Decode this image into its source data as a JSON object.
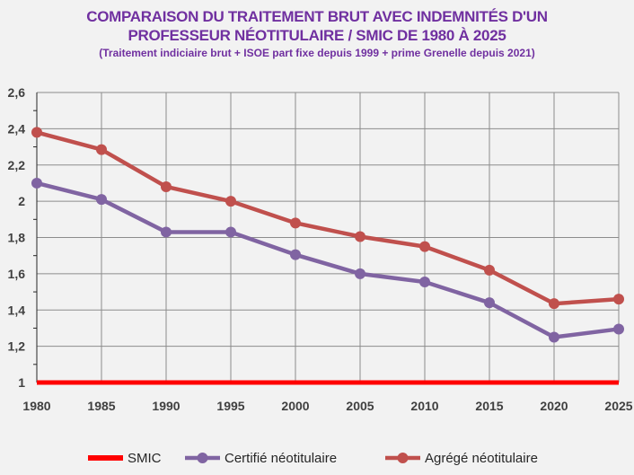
{
  "chart_data": {
    "type": "line",
    "title_line1": "COMPARAISON DU TRAITEMENT BRUT AVEC INDEMNITÉS D'UN",
    "title_line2": "PROFESSEUR NÉOTITULAIRE / SMIC DE 1980 À 2025",
    "subtitle": "(Traitement indiciaire brut + ISOE part fixe depuis 1999 + prime Grenelle depuis 2021)",
    "x": [
      1980,
      1985,
      1990,
      1995,
      2000,
      2005,
      2010,
      2015,
      2020,
      2025
    ],
    "x_tick_labels": [
      "1980",
      "1985",
      "1990",
      "1995",
      "2000",
      "2005",
      "2010",
      "2015",
      "2020",
      "2025"
    ],
    "ylim": [
      1,
      2.6
    ],
    "y_tick_labels": [
      "1",
      "1,2",
      "1,4",
      "1,6",
      "1,8",
      "2",
      "2,2",
      "2,4",
      "2,6"
    ],
    "y_ticks": [
      1,
      1.2,
      1.4,
      1.6,
      1.8,
      2,
      2.2,
      2.4,
      2.6
    ],
    "grid": true,
    "legend_position": "bottom",
    "series": [
      {
        "name": "SMIC",
        "color": "#ff0000",
        "values": [
          1,
          1,
          1,
          1,
          1,
          1,
          1,
          1,
          1,
          1
        ],
        "markers": false
      },
      {
        "name": "Certifié néotitulaire",
        "color": "#8064a2",
        "values": [
          2.1,
          2.01,
          1.83,
          1.83,
          1.705,
          1.6,
          1.555,
          1.44,
          1.25,
          1.295
        ],
        "markers": true
      },
      {
        "name": "Agrégé néotitulaire",
        "color": "#c0504d",
        "values": [
          2.38,
          2.285,
          2.08,
          2.0,
          1.88,
          1.805,
          1.75,
          1.62,
          1.435,
          1.46
        ],
        "markers": true
      }
    ]
  }
}
